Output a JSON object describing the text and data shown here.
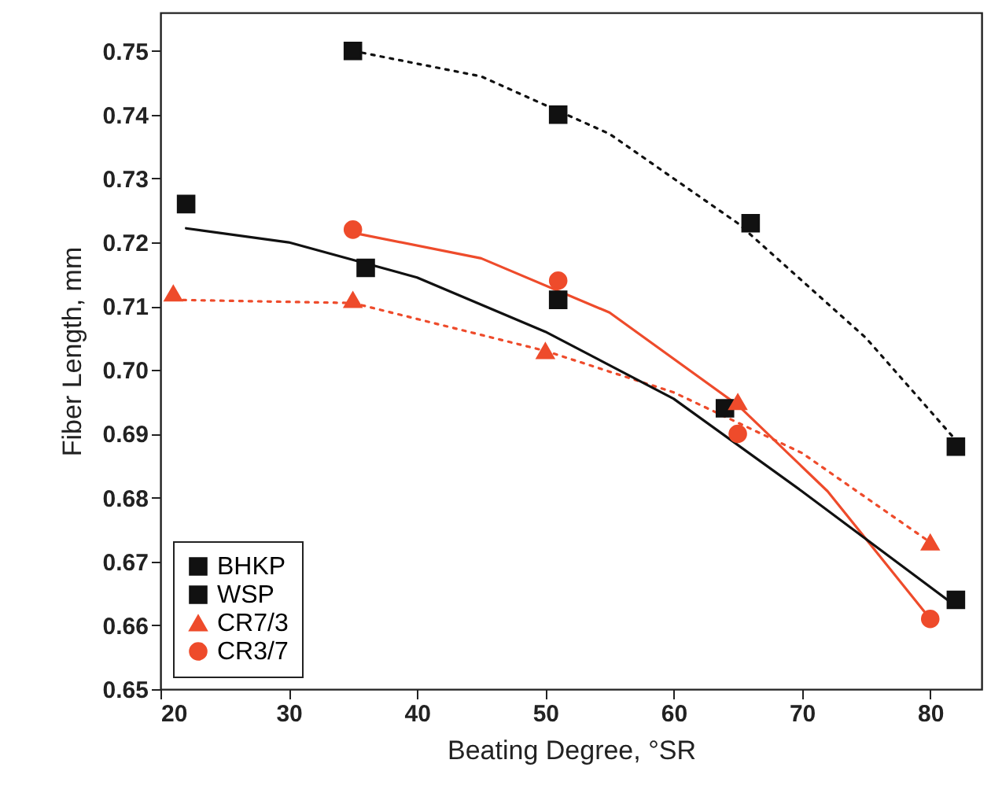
{
  "chart_data": {
    "type": "scatter",
    "xlabel": "Beating Degree, °SR",
    "ylabel": "Fiber Length, mm",
    "xlim": [
      20,
      84
    ],
    "ylim": [
      0.65,
      0.756
    ],
    "xticks": [
      20,
      30,
      40,
      50,
      60,
      70,
      80
    ],
    "yticks": [
      0.65,
      0.66,
      0.67,
      0.68,
      0.69,
      {
        "value": 0.7,
        "label": "0.70"
      },
      0.71,
      0.72,
      0.73,
      0.74,
      0.75
    ],
    "legend": "bottom left",
    "grid": false,
    "series": [
      {
        "name": "BHKP",
        "color": "#111111",
        "marker": "square",
        "x": [
          22,
          36,
          51,
          64,
          82
        ],
        "values": [
          0.726,
          0.716,
          0.711,
          0.694,
          0.664
        ]
      },
      {
        "name": "WSP",
        "color": "#111111",
        "marker": "square",
        "x": [
          35,
          51,
          66,
          82
        ],
        "values": [
          0.75,
          0.74,
          0.723,
          0.688
        ]
      },
      {
        "name": "CR7/3",
        "color": "#ee4b2b",
        "marker": "triangle",
        "x": [
          21,
          35,
          50,
          65,
          80
        ],
        "values": [
          0.712,
          0.711,
          0.703,
          0.695,
          0.673
        ]
      },
      {
        "name": "CR3/7",
        "color": "#ee4b2b",
        "marker": "circle",
        "x": [
          35,
          51,
          65,
          80
        ],
        "values": [
          0.722,
          0.714,
          0.69,
          0.661
        ]
      },
      {
        "type": "line",
        "color": "#111111",
        "line_style": "solid",
        "x": [
          22,
          30,
          40,
          50,
          60,
          70,
          82
        ],
        "values": [
          0.7222,
          0.72,
          0.7145,
          0.706,
          0.6955,
          0.681,
          0.663
        ]
      },
      {
        "type": "line",
        "color": "#111111",
        "line_style": "dotted",
        "x": [
          35,
          45,
          55,
          65,
          75,
          82
        ],
        "values": [
          0.75,
          0.746,
          0.737,
          0.723,
          0.705,
          0.689
        ]
      },
      {
        "type": "line",
        "color": "#ee4b2b",
        "line_style": "dotted",
        "x": [
          21,
          35,
          50,
          60,
          70,
          80
        ],
        "values": [
          0.711,
          0.7105,
          0.703,
          0.6965,
          0.687,
          0.673
        ]
      },
      {
        "type": "line",
        "color": "#ee4b2b",
        "line_style": "solid",
        "x": [
          35,
          45,
          55,
          65,
          72,
          80
        ],
        "values": [
          0.7215,
          0.7175,
          0.709,
          0.6945,
          0.681,
          0.661
        ]
      }
    ]
  }
}
